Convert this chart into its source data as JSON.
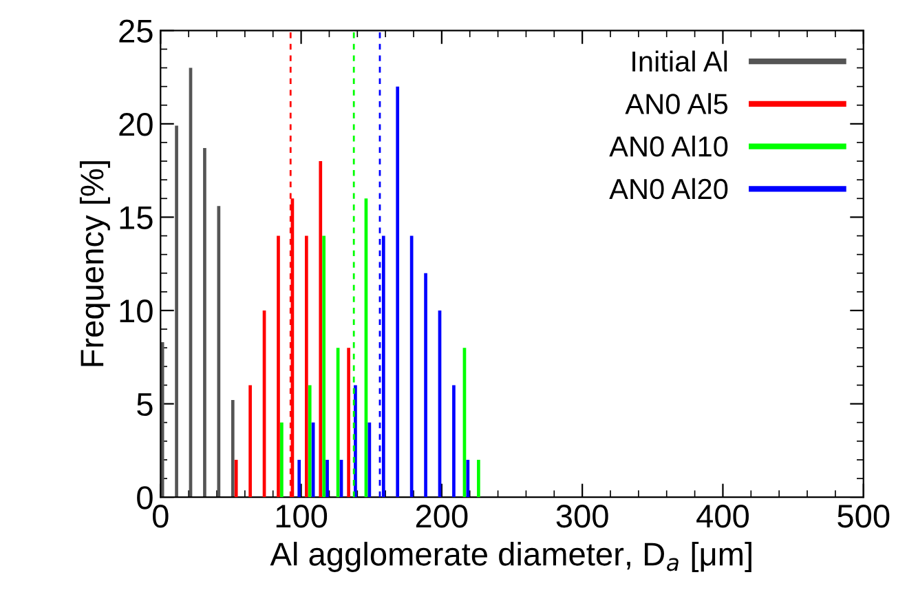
{
  "chart_data": {
    "type": "bar",
    "xlabel": "Al agglomerate diameter, D$_{a}$ [μm]",
    "ylabel": "Frequency [%]",
    "xlim": [
      0,
      500
    ],
    "xticks": [
      0,
      100,
      200,
      300,
      400,
      500
    ],
    "ylim": [
      0,
      25
    ],
    "yticks": [
      0,
      5,
      10,
      15,
      20,
      25
    ],
    "grid": false,
    "legend": "top right",
    "series": [
      {
        "name": "Initial Al",
        "color": "#555555",
        "x": [
          5,
          15,
          25,
          35,
          45,
          55
        ],
        "values": [
          8.3,
          19.9,
          23,
          18.7,
          15.6,
          5.2
        ]
      },
      {
        "name": "AN0 Al5",
        "color": "#ff0000",
        "x": [
          55,
          65,
          75,
          85,
          95,
          105,
          115,
          135
        ],
        "values": [
          2,
          6,
          10,
          14,
          16,
          14,
          18,
          8
        ]
      },
      {
        "name": "AN0 Al10",
        "color": "#00ff00",
        "x": [
          85,
          105,
          115,
          125,
          145,
          215,
          225
        ],
        "values": [
          4,
          6,
          14,
          8,
          16,
          8,
          2
        ]
      },
      {
        "name": "AN0 Al20",
        "color": "#0000ff",
        "x": [
          95,
          105,
          115,
          125,
          135,
          145,
          155,
          165,
          175,
          185,
          195,
          205,
          215
        ],
        "values": [
          2,
          4,
          2,
          2,
          6,
          4,
          14,
          22,
          14,
          12,
          10,
          6,
          2
        ]
      }
    ],
    "ref_lines": [
      {
        "axis": "x",
        "value": 92.5,
        "color": "#ff0000",
        "line_style": "dashed"
      },
      {
        "axis": "x",
        "value": 137.5,
        "color": "#00ff00",
        "line_style": "dashed"
      },
      {
        "axis": "x",
        "value": 156,
        "color": "#0000ff",
        "line_style": "dashed"
      }
    ]
  }
}
